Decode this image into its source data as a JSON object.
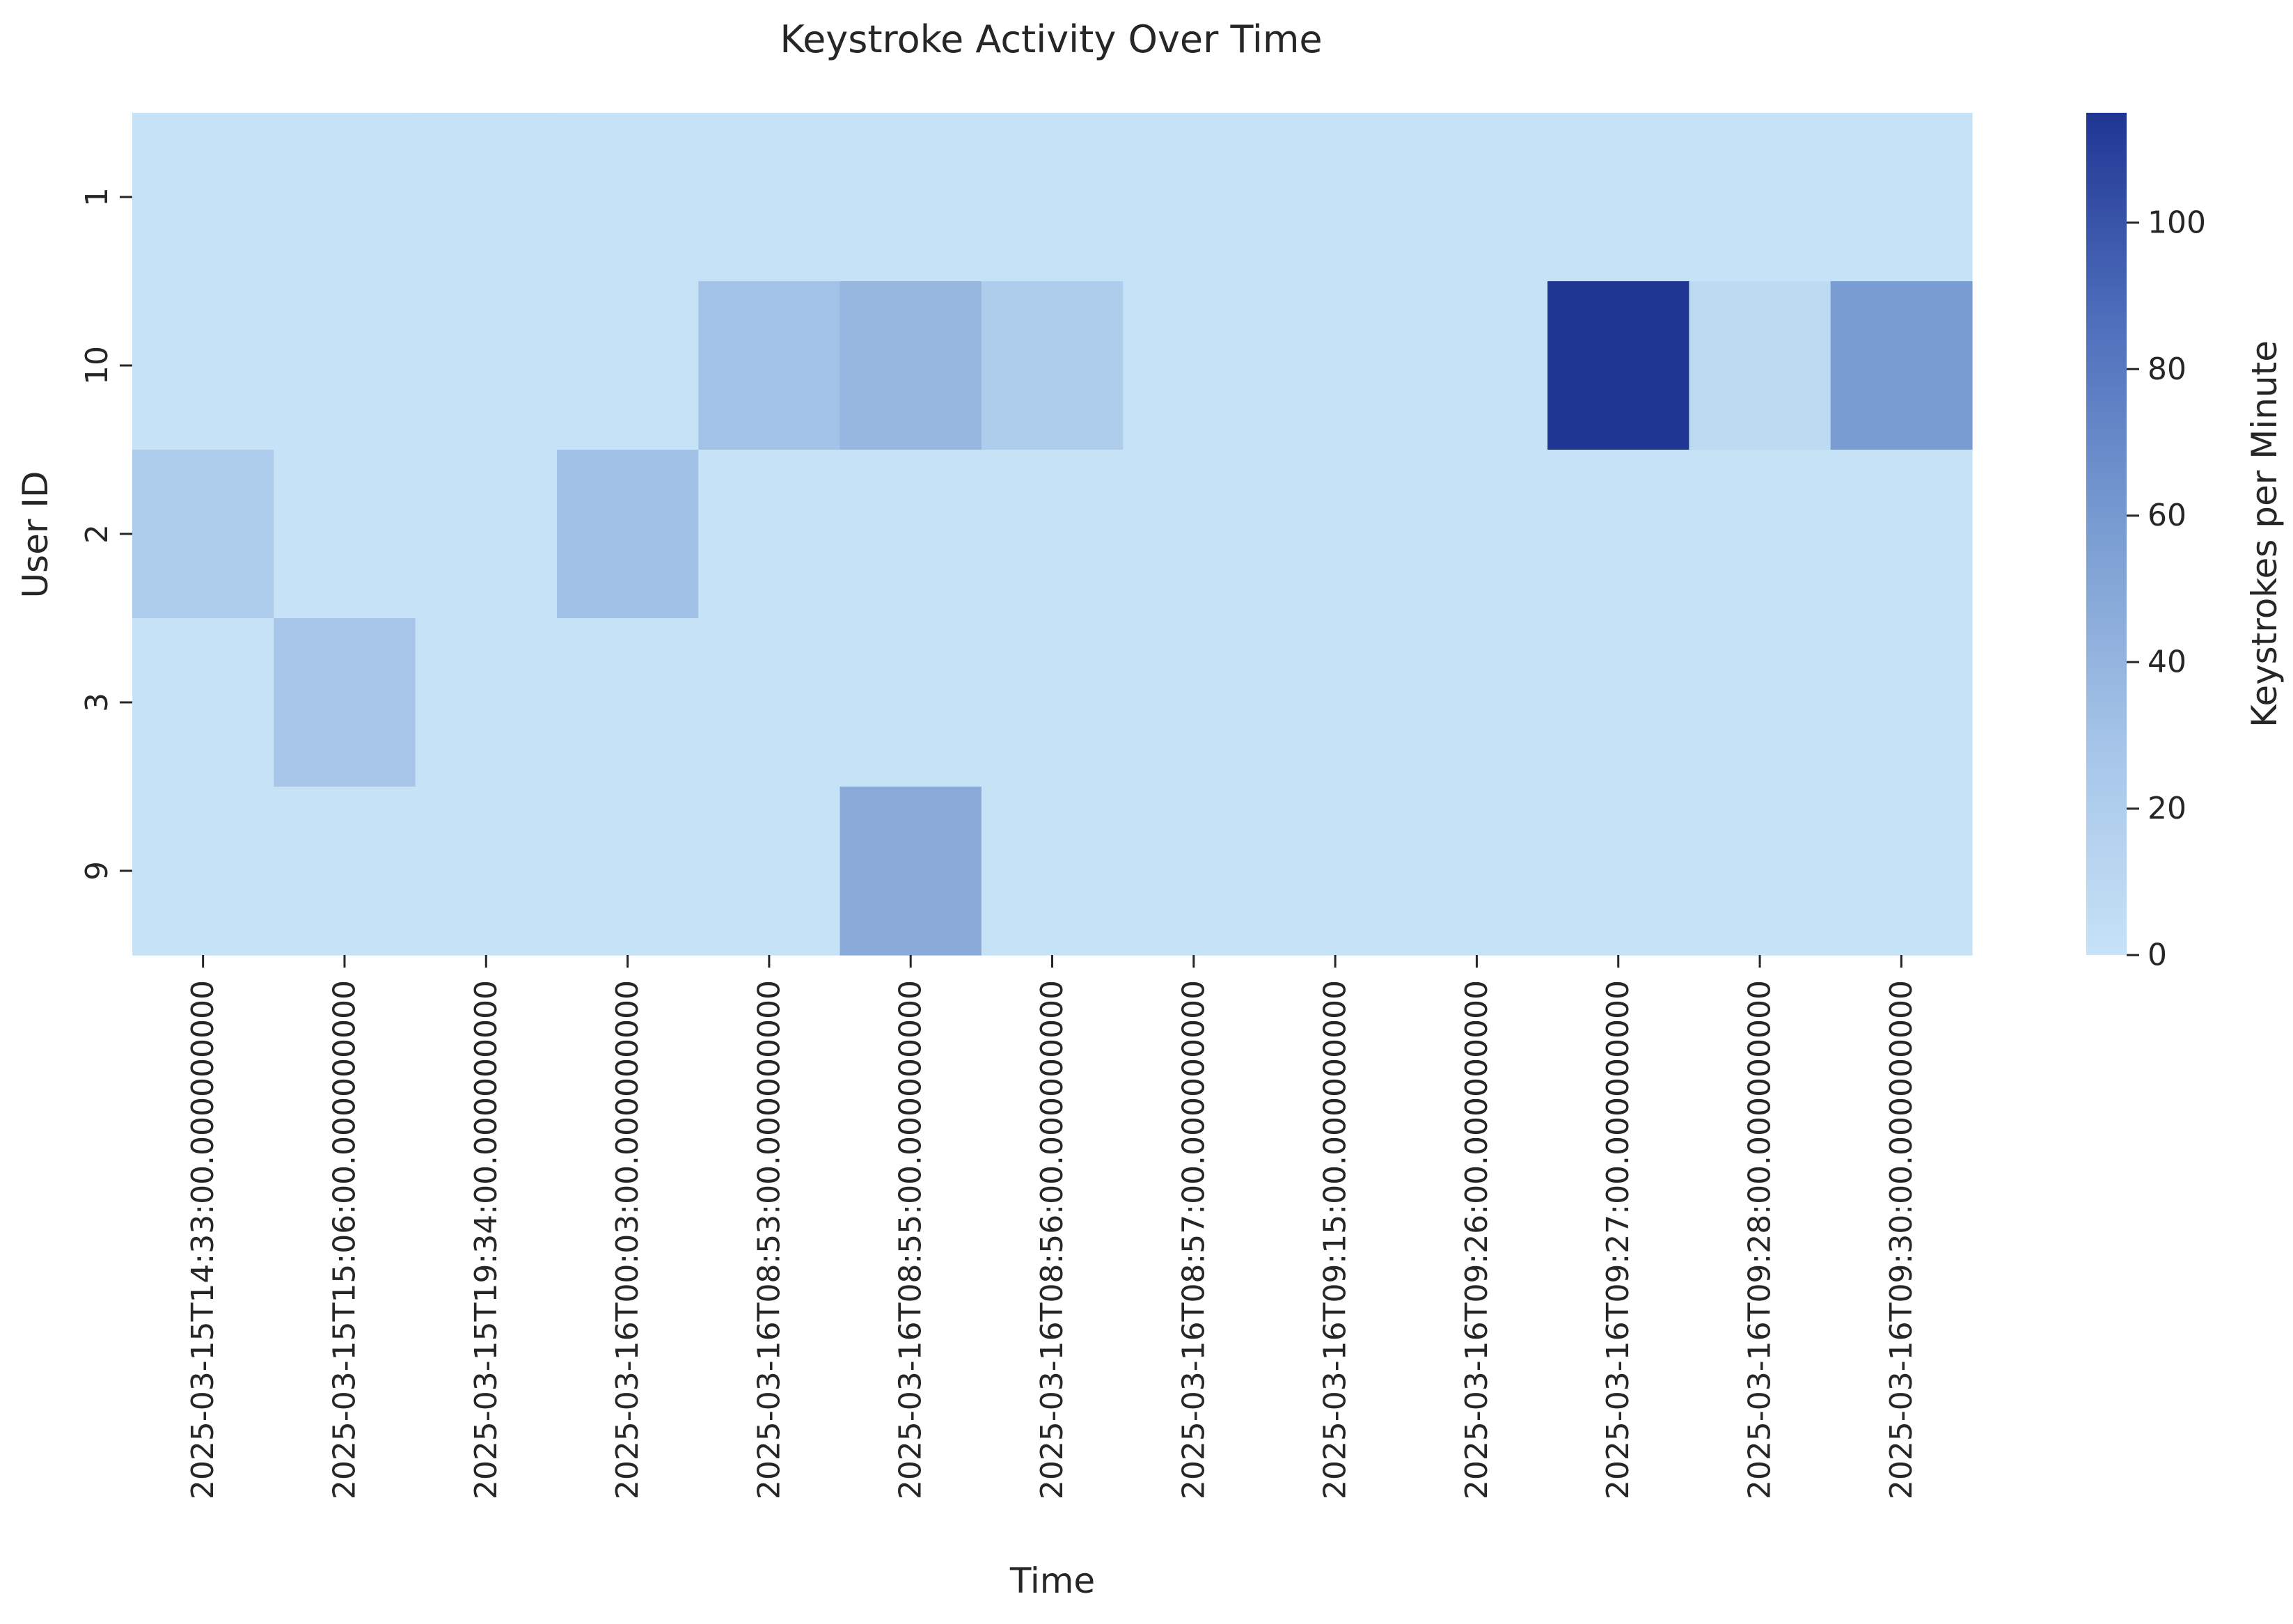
{
  "chart_data": {
    "type": "heatmap",
    "title": "Keystroke Activity Over Time",
    "xlabel": "Time",
    "ylabel": "User ID",
    "colorbar_label": "Keystrokes per Minute",
    "x_categories": [
      "2025-03-15T14:33:00.000000000",
      "2025-03-15T15:06:00.000000000",
      "2025-03-15T19:34:00.000000000",
      "2025-03-16T00:03:00.000000000",
      "2025-03-16T08:53:00.000000000",
      "2025-03-16T08:55:00.000000000",
      "2025-03-16T08:56:00.000000000",
      "2025-03-16T08:57:00.000000000",
      "2025-03-16T09:15:00.000000000",
      "2025-03-16T09:26:00.000000000",
      "2025-03-16T09:27:00.000000000",
      "2025-03-16T09:28:00.000000000",
      "2025-03-16T09:30:00.000000000"
    ],
    "y_categories": [
      "1",
      "10",
      "2",
      "3",
      "9"
    ],
    "values": [
      [
        0,
        0,
        1,
        0,
        0,
        0,
        0,
        0,
        0,
        0,
        0,
        0,
        0
      ],
      [
        0,
        0,
        0,
        0,
        30,
        38,
        21,
        0,
        0,
        0,
        115,
        8,
        58
      ],
      [
        21,
        0,
        0,
        31,
        0,
        0,
        0,
        0,
        0,
        0,
        0,
        0,
        0
      ],
      [
        0,
        28,
        0,
        0,
        0,
        0,
        0,
        0,
        0,
        0,
        0,
        0,
        0
      ],
      [
        0,
        0,
        0,
        0,
        0,
        47,
        0,
        0,
        0,
        0,
        0,
        0,
        0
      ]
    ],
    "colorbar": {
      "min": 0,
      "max": 115,
      "ticks": [
        0,
        20,
        40,
        60,
        80,
        100
      ],
      "colormap": [
        "#c6e2f7",
        "#a5c4e8",
        "#7a9dd2",
        "#4f6fbc",
        "#1f3693"
      ]
    },
    "grid": false,
    "legend": "colorbar-right"
  }
}
